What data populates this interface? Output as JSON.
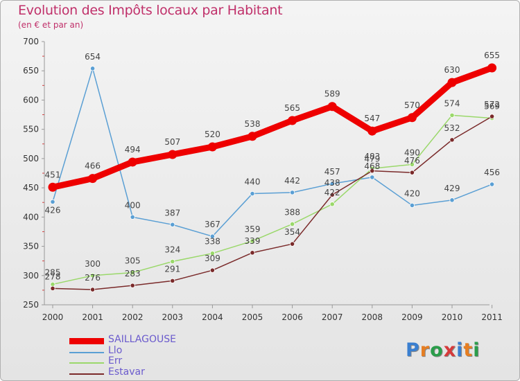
{
  "title": "Evolution des Impôts locaux par Habitant",
  "subtitle": "(en € et par an)",
  "logo_text": "Proxiti",
  "logo_colors": [
    "#3a7fd0",
    "#e67e22",
    "#2a9d4a",
    "#d63a3a",
    "#3a7fd0",
    "#e67e22",
    "#2a9d4a"
  ],
  "chart_data": {
    "type": "line",
    "title": "Evolution des Impôts locaux par Habitant",
    "subtitle": "(en € et par an)",
    "x": [
      "2000",
      "2001",
      "2002",
      "2003",
      "2004",
      "2005",
      "2006",
      "2007",
      "2008",
      "2009",
      "2010",
      "2011"
    ],
    "ylim": [
      250,
      700
    ],
    "yticks": [
      250,
      300,
      350,
      400,
      450,
      500,
      550,
      600,
      650,
      700
    ],
    "grid": false,
    "legend_position": "bottom-left",
    "series": [
      {
        "name": "SAILLAGOUSE",
        "color": "#ee0000",
        "width": 9,
        "values": [
          451,
          466,
          494,
          507,
          520,
          538,
          565,
          589,
          547,
          570,
          630,
          655
        ]
      },
      {
        "name": "Llo",
        "color": "#5a9fd4",
        "width": 1.5,
        "values": [
          426,
          654,
          400,
          387,
          367,
          440,
          442,
          457,
          468,
          420,
          429,
          456
        ]
      },
      {
        "name": "Err",
        "color": "#9ad86a",
        "width": 1.5,
        "values": [
          285,
          300,
          305,
          324,
          338,
          359,
          388,
          422,
          483,
          490,
          574,
          569
        ]
      },
      {
        "name": "Estavar",
        "color": "#7a2a2a",
        "width": 1.5,
        "values": [
          278,
          276,
          283,
          291,
          309,
          339,
          354,
          438,
          479,
          476,
          532,
          572
        ]
      }
    ]
  }
}
